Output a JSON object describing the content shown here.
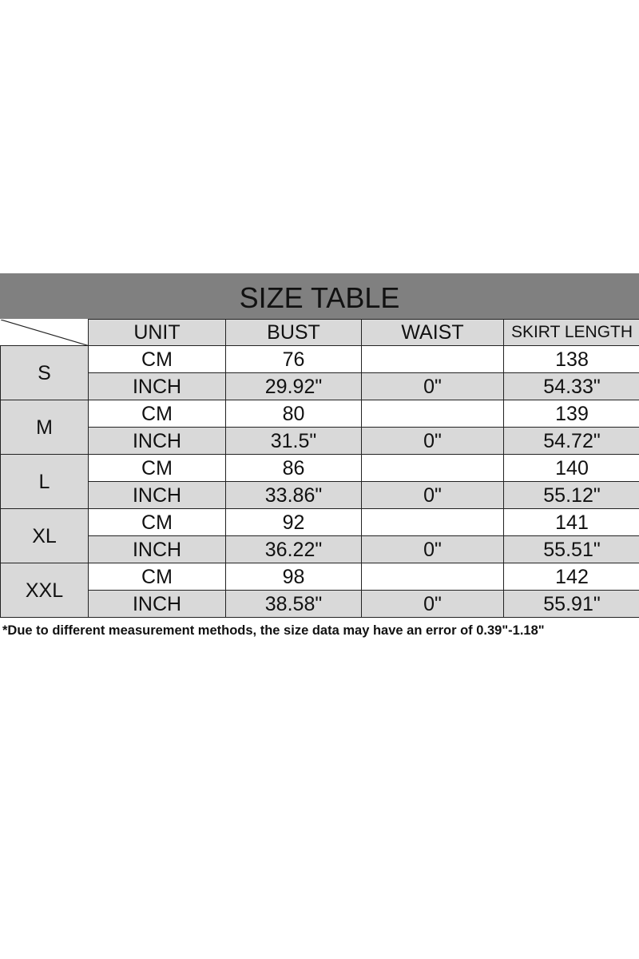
{
  "title": "SIZE TABLE",
  "columns": [
    "UNIT",
    "BUST",
    "WAIST",
    "SKIRT LENGTH"
  ],
  "sizes": [
    {
      "size": "S",
      "rows": [
        [
          "CM",
          "76",
          "",
          "138"
        ],
        [
          "INCH",
          "29.92\"",
          "0\"",
          "54.33\""
        ]
      ]
    },
    {
      "size": "M",
      "rows": [
        [
          "CM",
          "80",
          "",
          "139"
        ],
        [
          "INCH",
          "31.5\"",
          "0\"",
          "54.72\""
        ]
      ]
    },
    {
      "size": "L",
      "rows": [
        [
          "CM",
          "86",
          "",
          "140"
        ],
        [
          "INCH",
          "33.86\"",
          "0\"",
          "55.12\""
        ]
      ]
    },
    {
      "size": "XL",
      "rows": [
        [
          "CM",
          "92",
          "",
          "141"
        ],
        [
          "INCH",
          "36.22\"",
          "0\"",
          "55.51\""
        ]
      ]
    },
    {
      "size": "XXL",
      "rows": [
        [
          "CM",
          "98",
          "",
          "142"
        ],
        [
          "INCH",
          "38.58\"",
          "0\"",
          "55.91\""
        ]
      ]
    }
  ],
  "note": "*Due to different measurement methods, the size data may have an error of 0.39\"-1.18\"",
  "colors": {
    "title_bg": "#808080",
    "cell_gray": "#d9d9d9"
  }
}
